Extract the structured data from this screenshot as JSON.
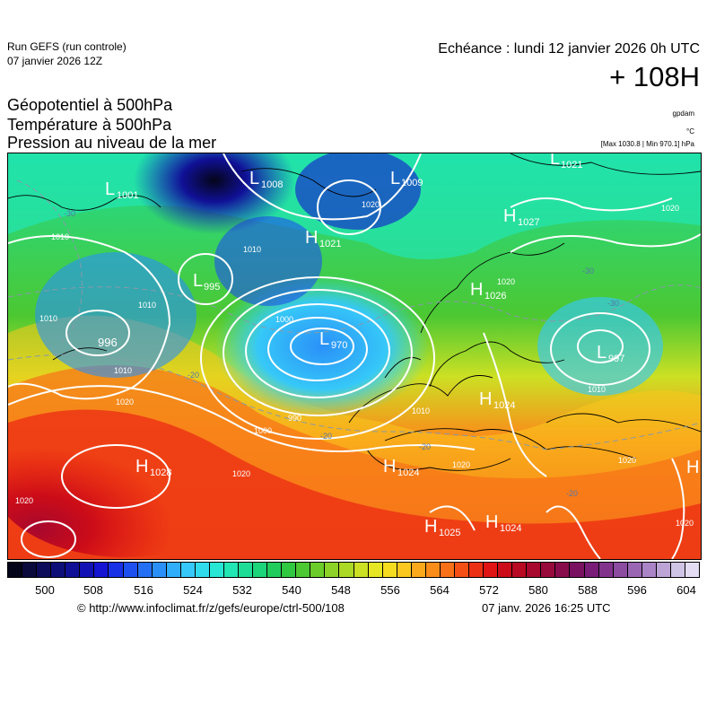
{
  "header": {
    "run_title": "Run GEFS (run controle)",
    "run_date": "07 janvier 2026 12Z",
    "echeance": "Echéance : lundi 12 janvier 2026 0h UTC",
    "lead": "+ 108H",
    "params": [
      "Géopotentiel à 500hPa",
      "Température à 500hPa",
      "Pression au niveau de la mer"
    ],
    "unit_geopotential": "gpdam",
    "unit_temperature": "°C",
    "pressure_range": "[Max 1030.8 | Min 970.1] hPa"
  },
  "map": {
    "pressure_centers": [
      {
        "type": "L",
        "value": "1001"
      },
      {
        "type": "L",
        "value": "1008"
      },
      {
        "type": "L",
        "value": "1009"
      },
      {
        "type": "L",
        "value": "1021"
      },
      {
        "type": "H",
        "value": "1027"
      },
      {
        "type": "H",
        "value": "1021"
      },
      {
        "type": "L",
        "value": "995"
      },
      {
        "type": "H",
        "value": "1026"
      },
      {
        "type": "L",
        "value": "996"
      },
      {
        "type": "L",
        "value": "970"
      },
      {
        "type": "L",
        "value": "997"
      },
      {
        "type": "H",
        "value": "1024"
      },
      {
        "type": "H",
        "value": "1028"
      },
      {
        "type": "H",
        "value": "1024"
      },
      {
        "type": "H",
        "value": "1025"
      },
      {
        "type": "H",
        "value": "1024"
      }
    ],
    "isobar_labels": [
      "1010",
      "1010",
      "1010",
      "1010",
      "1020",
      "1010",
      "1020",
      "1000",
      "990",
      "1000",
      "1010",
      "1020",
      "1020",
      "1020",
      "1010",
      "1020",
      "1020",
      "1020",
      "1020"
    ],
    "temperature_labels": [
      "-30",
      "-30",
      "-30",
      "-20",
      "-20",
      "-20",
      "-20"
    ],
    "colors": {
      "isobar": "#ffffff",
      "isotherm": "#8899aa",
      "coast": "#000000"
    }
  },
  "legend": {
    "ticks": [
      "500",
      "508",
      "516",
      "524",
      "532",
      "540",
      "548",
      "556",
      "564",
      "572",
      "580",
      "588",
      "596",
      "604"
    ],
    "colors": [
      "#05051a",
      "#0a0a3c",
      "#0c0c5a",
      "#0e0e78",
      "#101096",
      "#1212b4",
      "#1414d2",
      "#1830e6",
      "#1e50ef",
      "#2470f5",
      "#2a90f8",
      "#30aefa",
      "#36c8f8",
      "#30dcec",
      "#28e6d4",
      "#22e6b4",
      "#1edc96",
      "#1cd47a",
      "#20cc5c",
      "#30c840",
      "#4cc832",
      "#6ccc2a",
      "#8cd228",
      "#acd826",
      "#cce024",
      "#e6e624",
      "#f5dc20",
      "#fac81e",
      "#faa81c",
      "#fa8c1a",
      "#f87018",
      "#f45016",
      "#ec3014",
      "#e01414",
      "#cc0c18",
      "#b80a22",
      "#a8082e",
      "#980a3c",
      "#880c4c",
      "#7a1060",
      "#781c78",
      "#82348c",
      "#8c4ca0",
      "#9a66b4",
      "#aa84c6",
      "#bca4d6",
      "#d0c4e6",
      "#e4dcf2"
    ]
  },
  "footer": {
    "url": "© http://www.infoclimat.fr/z/gefs/europe/ctrl-500/108",
    "timestamp": "07 janv. 2026 16:25 UTC"
  }
}
